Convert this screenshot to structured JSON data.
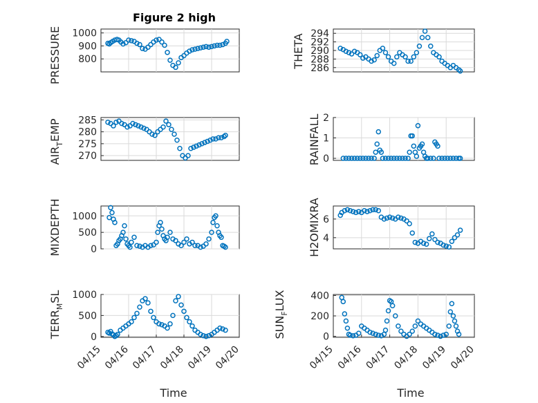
{
  "figure": {
    "title": "Figure 2 high",
    "x_axis_label": "Time",
    "x_tick_labels": [
      "04/15",
      "04/16",
      "04/17",
      "04/18",
      "04/19",
      "04/20"
    ],
    "marker_color": "#0072BD",
    "grid_color": "#d9d9d9"
  },
  "chart_data": [
    {
      "type": "scatter",
      "ylabel": "PRESSURE",
      "ylim": [
        700,
        1030
      ],
      "yticks": [
        800,
        900,
        1000
      ],
      "xlim": [
        0,
        5
      ],
      "grid": "on",
      "x": [
        0.25,
        0.3,
        0.35,
        0.42,
        0.5,
        0.58,
        0.65,
        0.72,
        0.8,
        0.9,
        1.0,
        1.1,
        1.2,
        1.3,
        1.4,
        1.5,
        1.6,
        1.7,
        1.8,
        1.9,
        2.0,
        2.1,
        2.2,
        2.3,
        2.4,
        2.5,
        2.6,
        2.7,
        2.8,
        2.9,
        3.0,
        3.1,
        3.2,
        3.3,
        3.4,
        3.5,
        3.6,
        3.7,
        3.8,
        3.9,
        4.0,
        4.1,
        4.2,
        4.3,
        4.4,
        4.5,
        4.55
      ],
      "y": [
        920,
        915,
        925,
        935,
        945,
        950,
        945,
        930,
        915,
        925,
        945,
        940,
        935,
        920,
        910,
        880,
        875,
        890,
        910,
        930,
        945,
        950,
        930,
        905,
        850,
        790,
        750,
        735,
        770,
        810,
        825,
        845,
        860,
        870,
        875,
        880,
        885,
        890,
        895,
        890,
        895,
        900,
        905,
        905,
        910,
        920,
        935
      ]
    },
    {
      "type": "scatter",
      "ylabel": "THETA",
      "ylim": [
        285,
        295
      ],
      "yticks": [
        286,
        288,
        290,
        292,
        294
      ],
      "xlim": [
        0,
        5
      ],
      "grid": "on",
      "x": [
        0.25,
        0.35,
        0.45,
        0.55,
        0.65,
        0.75,
        0.85,
        0.95,
        1.05,
        1.15,
        1.25,
        1.35,
        1.45,
        1.55,
        1.65,
        1.75,
        1.85,
        1.95,
        2.05,
        2.15,
        2.25,
        2.35,
        2.45,
        2.55,
        2.65,
        2.75,
        2.85,
        2.95,
        3.05,
        3.15,
        3.25,
        3.35,
        3.45,
        3.55,
        3.65,
        3.75,
        3.85,
        3.95,
        4.05,
        4.15,
        4.25,
        4.35,
        4.45,
        4.5
      ],
      "y": [
        290.5,
        290.2,
        289.8,
        289.5,
        289.2,
        289.8,
        289.5,
        289.0,
        288.2,
        288.5,
        288.0,
        287.5,
        287.8,
        288.8,
        290.0,
        290.5,
        289.5,
        288.5,
        287.5,
        287.0,
        288.5,
        289.5,
        289.0,
        288.5,
        287.5,
        287.5,
        288.5,
        289.5,
        291,
        293,
        294.5,
        293,
        291,
        289.5,
        289,
        288.5,
        287.5,
        287,
        286.5,
        286,
        286.5,
        286,
        285.5,
        285.2
      ]
    },
    {
      "type": "scatter",
      "ylabel": "AIR_TEMP",
      "ylim": [
        268,
        286
      ],
      "yticks": [
        270,
        275,
        280,
        285
      ],
      "xlim": [
        0,
        5
      ],
      "grid": "on",
      "x": [
        0.25,
        0.35,
        0.45,
        0.55,
        0.65,
        0.75,
        0.85,
        0.95,
        1.05,
        1.15,
        1.25,
        1.35,
        1.45,
        1.55,
        1.65,
        1.75,
        1.85,
        1.95,
        2.05,
        2.15,
        2.25,
        2.35,
        2.45,
        2.55,
        2.65,
        2.75,
        2.85,
        2.95,
        3.05,
        3.15,
        3.25,
        3.35,
        3.45,
        3.55,
        3.65,
        3.75,
        3.85,
        3.95,
        4.05,
        4.15,
        4.25,
        4.35,
        4.45,
        4.5
      ],
      "y": [
        284,
        283.5,
        282.5,
        284,
        284.5,
        283.5,
        283,
        282,
        282.5,
        283.5,
        283,
        282.5,
        282,
        281.5,
        281,
        280,
        279,
        278.5,
        280,
        281,
        282,
        284.5,
        283,
        281,
        279,
        276.5,
        273,
        270,
        269,
        270,
        273,
        273.5,
        274,
        274.5,
        275,
        275.5,
        276,
        276.5,
        277,
        277,
        277.5,
        277.5,
        278,
        278.5
      ]
    },
    {
      "type": "scatter",
      "ylabel": "RAINFALL",
      "ylim": [
        -0.1,
        2
      ],
      "yticks": [
        0,
        1,
        2
      ],
      "xlim": [
        0,
        5
      ],
      "grid": "on",
      "x": [
        0.35,
        0.45,
        0.55,
        0.65,
        0.75,
        0.85,
        0.95,
        1.05,
        1.15,
        1.25,
        1.35,
        1.45,
        1.5,
        1.55,
        1.6,
        1.65,
        1.7,
        1.75,
        1.85,
        1.95,
        2.05,
        2.15,
        2.25,
        2.35,
        2.45,
        2.55,
        2.65,
        2.7,
        2.75,
        2.8,
        2.85,
        2.9,
        2.95,
        3.0,
        3.05,
        3.1,
        3.15,
        3.2,
        3.25,
        3.3,
        3.35,
        3.45,
        3.55,
        3.6,
        3.65,
        3.7,
        3.75,
        3.85,
        3.95,
        4.05,
        4.15,
        4.25,
        4.35,
        4.45,
        4.5
      ],
      "y": [
        0,
        0,
        0,
        0,
        0,
        0,
        0,
        0,
        0,
        0,
        0,
        0,
        0.3,
        0.7,
        1.3,
        0.4,
        0.3,
        0,
        0,
        0,
        0,
        0,
        0,
        0,
        0,
        0,
        0,
        0.3,
        1.1,
        1.1,
        0.6,
        0.3,
        0.1,
        1.6,
        0.5,
        0.6,
        0.7,
        0.3,
        0.1,
        0,
        0,
        0,
        0,
        0.8,
        0.7,
        0.6,
        0,
        0,
        0,
        0,
        0,
        0,
        0,
        0,
        0
      ]
    },
    {
      "type": "scatter",
      "ylabel": "MIXDEPTH",
      "ylim": [
        0,
        1300
      ],
      "yticks": [
        0,
        500,
        1000
      ],
      "xlim": [
        0,
        5
      ],
      "grid": "on",
      "x": [
        0.3,
        0.35,
        0.4,
        0.45,
        0.5,
        0.55,
        0.6,
        0.65,
        0.7,
        0.75,
        0.8,
        0.85,
        0.9,
        0.95,
        1.0,
        1.05,
        1.1,
        1.2,
        1.3,
        1.4,
        1.5,
        1.6,
        1.7,
        1.8,
        1.9,
        2.0,
        2.05,
        2.1,
        2.15,
        2.2,
        2.25,
        2.3,
        2.35,
        2.4,
        2.5,
        2.6,
        2.7,
        2.8,
        2.9,
        3.0,
        3.1,
        3.2,
        3.3,
        3.4,
        3.5,
        3.6,
        3.7,
        3.8,
        3.9,
        4.0,
        4.05,
        4.1,
        4.15,
        4.2,
        4.25,
        4.3,
        4.35,
        4.4,
        4.45,
        4.5
      ],
      "y": [
        950,
        1250,
        1100,
        900,
        800,
        100,
        150,
        250,
        300,
        400,
        500,
        700,
        300,
        150,
        100,
        50,
        200,
        350,
        100,
        80,
        50,
        100,
        50,
        100,
        120,
        200,
        500,
        700,
        800,
        600,
        400,
        300,
        250,
        350,
        500,
        300,
        250,
        150,
        100,
        200,
        300,
        150,
        200,
        100,
        100,
        50,
        80,
        150,
        300,
        500,
        800,
        950,
        1000,
        700,
        500,
        400,
        350,
        100,
        80,
        50
      ]
    },
    {
      "type": "scatter",
      "ylabel": "H2OMIXRA",
      "ylim": [
        2.8,
        7.4
      ],
      "yticks": [
        4,
        6
      ],
      "xlim": [
        0,
        5
      ],
      "grid": "on",
      "x": [
        0.25,
        0.3,
        0.4,
        0.5,
        0.6,
        0.7,
        0.8,
        0.9,
        1.0,
        1.1,
        1.2,
        1.3,
        1.4,
        1.5,
        1.6,
        1.7,
        1.8,
        1.9,
        2.0,
        2.1,
        2.2,
        2.3,
        2.4,
        2.5,
        2.6,
        2.7,
        2.8,
        2.9,
        3.0,
        3.1,
        3.2,
        3.3,
        3.4,
        3.5,
        3.6,
        3.7,
        3.8,
        3.9,
        4.0,
        4.1,
        4.2,
        4.3,
        4.4,
        4.5
      ],
      "y": [
        6.4,
        6.7,
        6.9,
        7.0,
        6.9,
        6.8,
        6.7,
        6.8,
        6.7,
        6.9,
        6.8,
        6.9,
        7.0,
        7.0,
        6.9,
        6.2,
        6.0,
        6.1,
        6.2,
        6.1,
        6.0,
        6.2,
        6.1,
        6.0,
        5.8,
        5.5,
        4.5,
        3.5,
        3.4,
        3.6,
        3.4,
        3.3,
        3.9,
        4.4,
        3.8,
        3.5,
        3.4,
        3.2,
        3.1,
        3.0,
        3.6,
        4.0,
        4.3,
        4.8
      ]
    },
    {
      "type": "scatter",
      "ylabel": "TERR_MSL",
      "ylim": [
        -20,
        1000
      ],
      "yticks": [
        0,
        500,
        1000
      ],
      "xlim": [
        0,
        5
      ],
      "grid": "on",
      "x": [
        0.25,
        0.3,
        0.35,
        0.4,
        0.45,
        0.5,
        0.55,
        0.6,
        0.7,
        0.8,
        0.9,
        1.0,
        1.1,
        1.2,
        1.3,
        1.4,
        1.5,
        1.6,
        1.7,
        1.8,
        1.9,
        2.0,
        2.1,
        2.2,
        2.3,
        2.4,
        2.5,
        2.6,
        2.7,
        2.8,
        2.9,
        3.0,
        3.1,
        3.2,
        3.3,
        3.4,
        3.5,
        3.6,
        3.7,
        3.8,
        3.9,
        4.0,
        4.1,
        4.2,
        4.3,
        4.4,
        4.5
      ],
      "y": [
        100,
        80,
        120,
        60,
        40,
        0,
        20,
        50,
        150,
        200,
        250,
        300,
        350,
        450,
        550,
        700,
        850,
        900,
        800,
        600,
        450,
        350,
        300,
        280,
        250,
        200,
        300,
        500,
        850,
        950,
        750,
        600,
        450,
        350,
        250,
        150,
        100,
        50,
        20,
        0,
        20,
        50,
        100,
        150,
        200,
        180,
        150
      ]
    },
    {
      "type": "scatter",
      "ylabel": "SUN_FLUX",
      "ylim": [
        -10,
        410
      ],
      "yticks": [
        0,
        200,
        400
      ],
      "xlim": [
        0,
        5
      ],
      "grid": "on",
      "x": [
        0.3,
        0.35,
        0.4,
        0.45,
        0.5,
        0.55,
        0.6,
        0.7,
        0.8,
        0.9,
        1.0,
        1.1,
        1.2,
        1.3,
        1.4,
        1.5,
        1.6,
        1.7,
        1.8,
        1.85,
        1.9,
        1.95,
        2.0,
        2.05,
        2.1,
        2.2,
        2.3,
        2.4,
        2.5,
        2.6,
        2.7,
        2.8,
        2.9,
        3.0,
        3.1,
        3.2,
        3.3,
        3.4,
        3.5,
        3.6,
        3.7,
        3.8,
        3.9,
        4.0,
        4.1,
        4.15,
        4.2,
        4.25,
        4.3,
        4.35,
        4.4,
        4.45
      ],
      "y": [
        380,
        340,
        220,
        150,
        80,
        20,
        10,
        5,
        10,
        30,
        100,
        80,
        60,
        40,
        30,
        20,
        10,
        5,
        20,
        60,
        150,
        250,
        350,
        340,
        300,
        200,
        100,
        50,
        20,
        0,
        20,
        50,
        100,
        150,
        120,
        100,
        80,
        60,
        40,
        20,
        10,
        0,
        10,
        20,
        100,
        240,
        320,
        200,
        150,
        100,
        50,
        20
      ]
    }
  ]
}
